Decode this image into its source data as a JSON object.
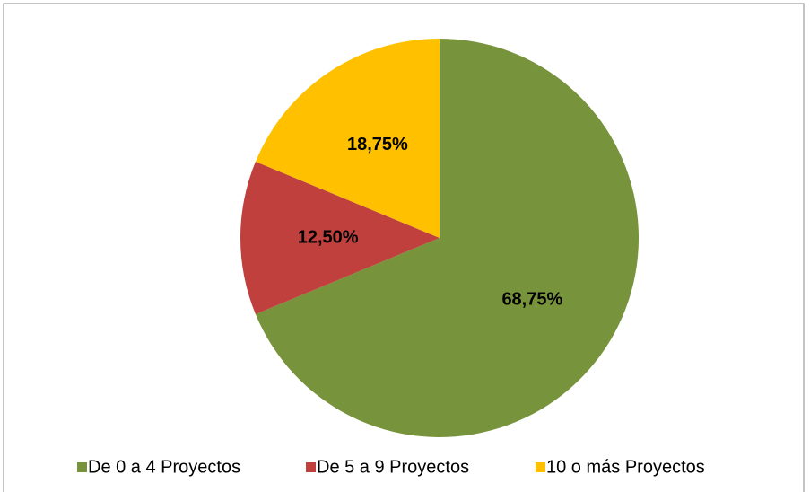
{
  "chart_data": {
    "type": "pie",
    "categories": [
      "De 0 a 4 Proyectos",
      "De 5 a 9 Proyectos",
      "10 o más Proyectos"
    ],
    "values": [
      68.75,
      12.5,
      18.75
    ],
    "value_labels": [
      "68,75%",
      "12,50%",
      "18,75%"
    ],
    "colors": [
      "#77933c",
      "#c0403d",
      "#ffc000"
    ],
    "legend": "bottom"
  }
}
